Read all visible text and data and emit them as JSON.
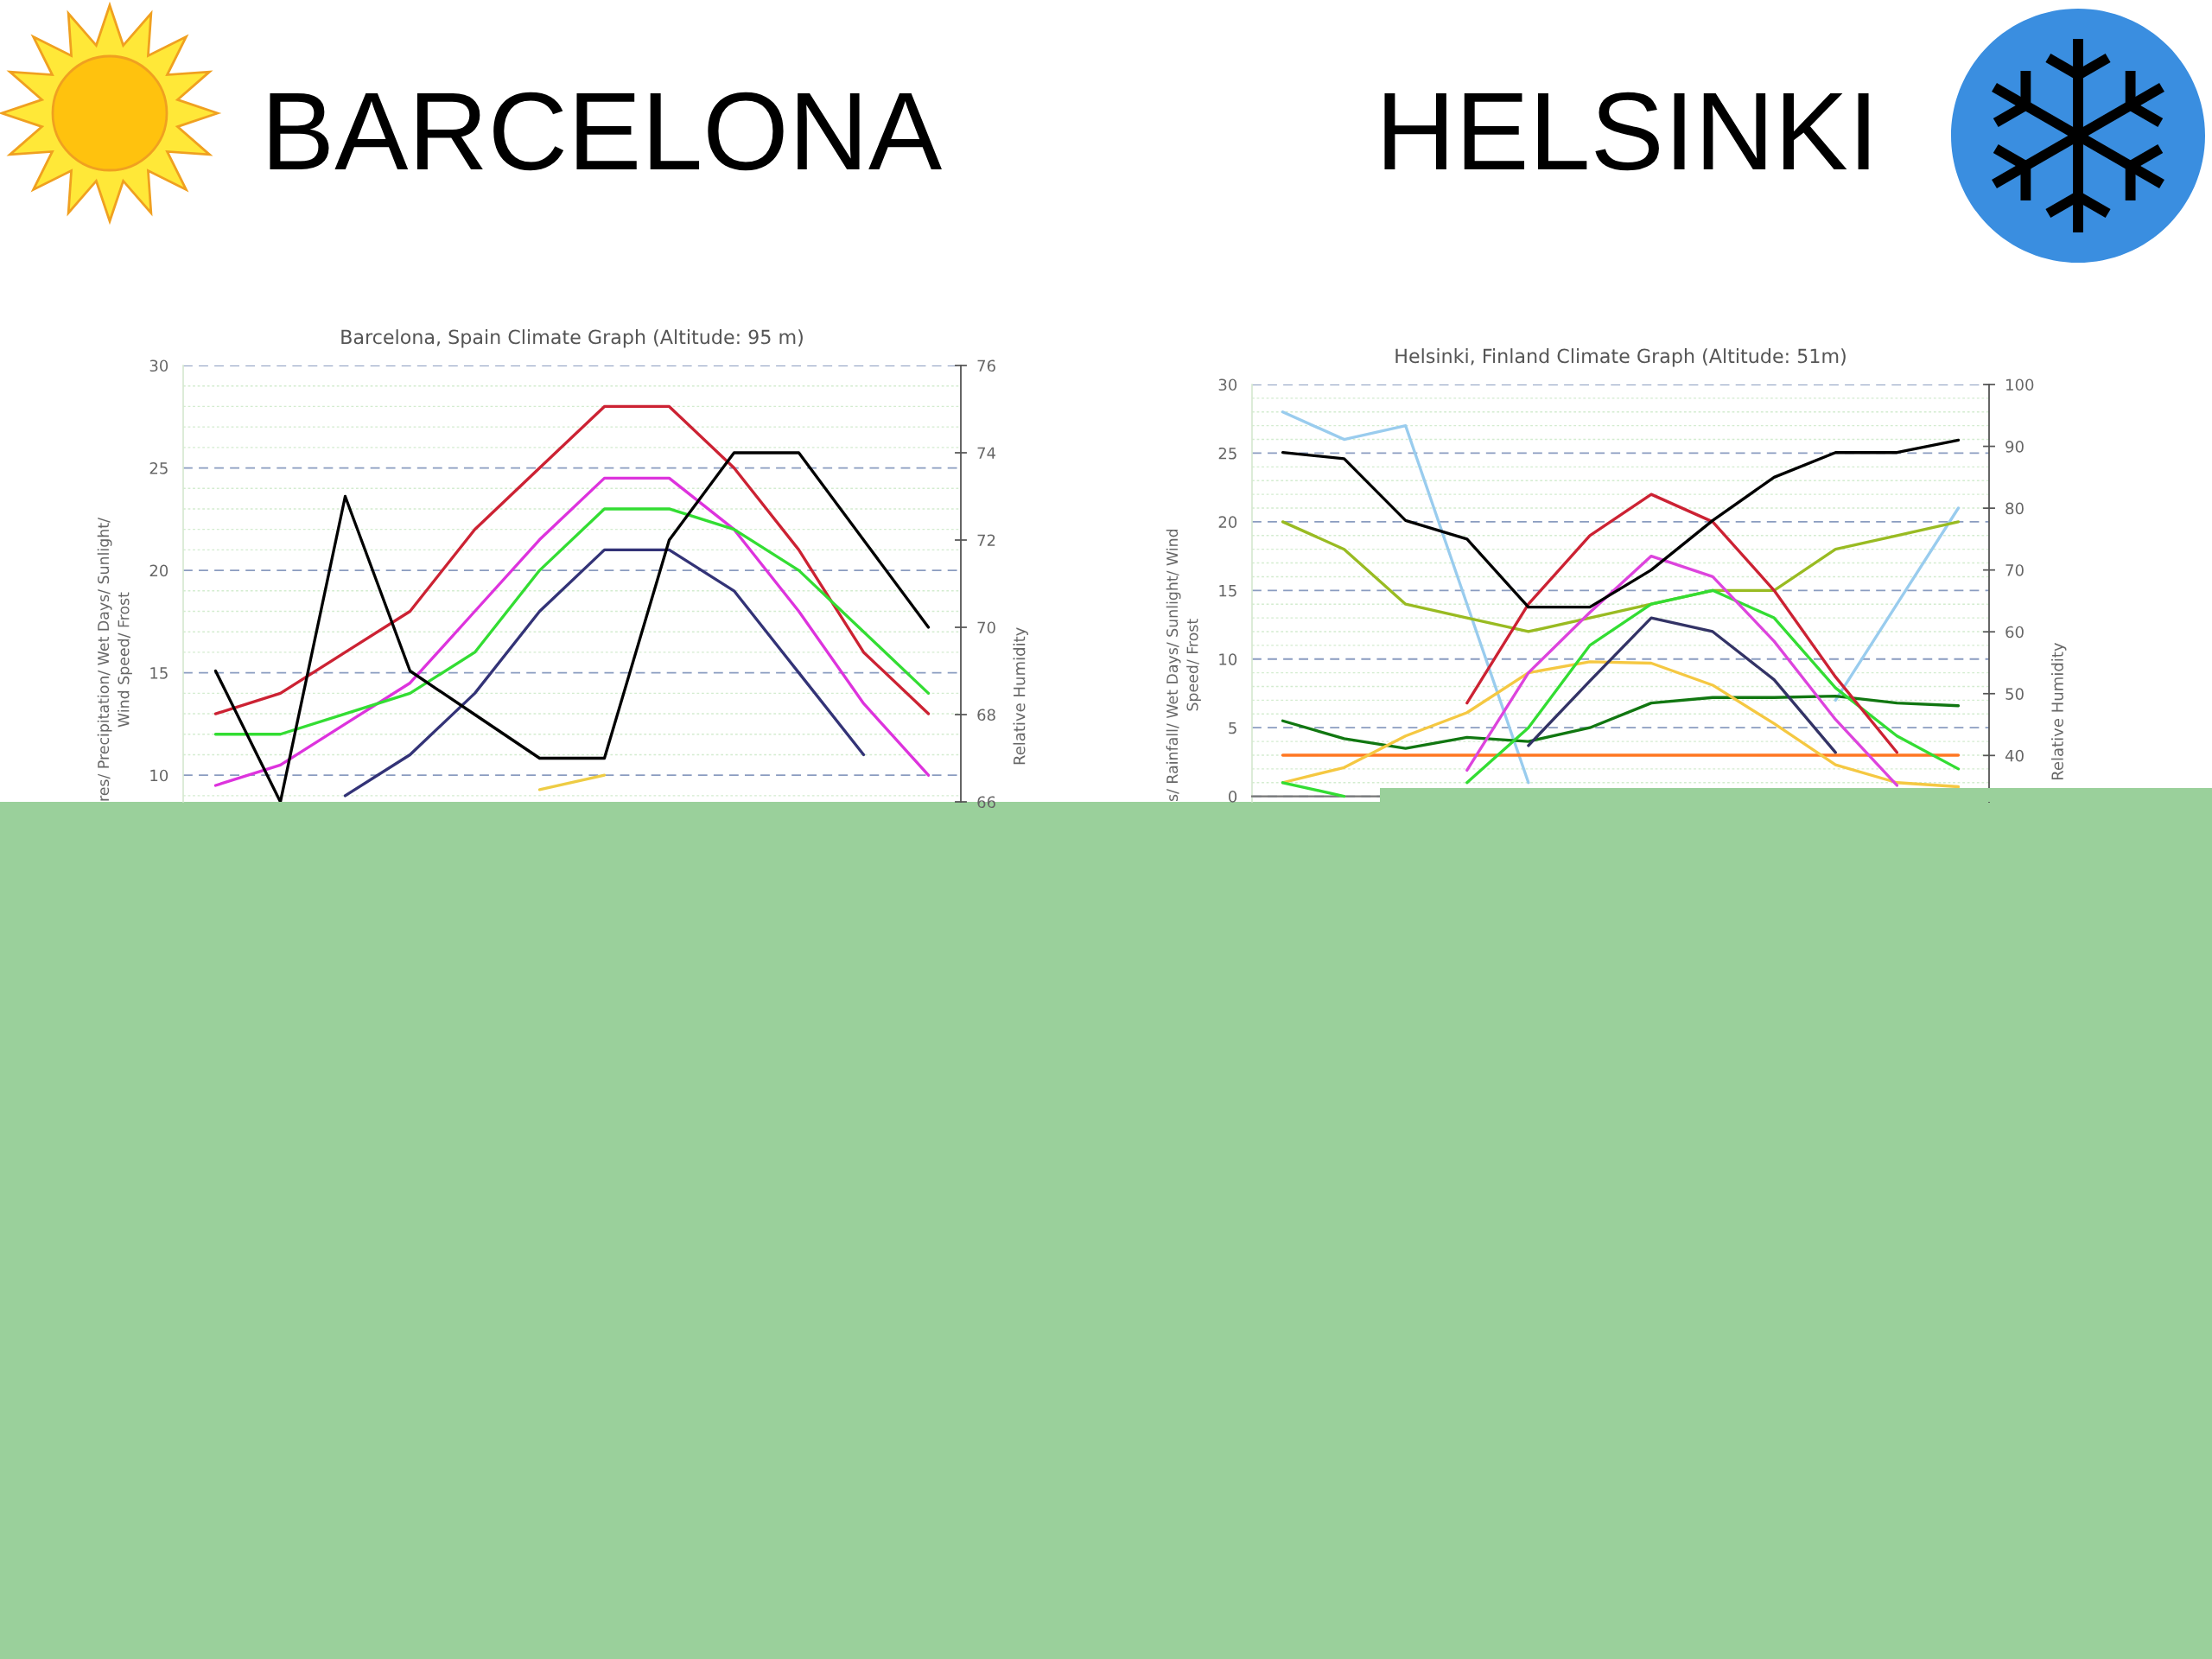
{
  "chart_data": [
    {
      "type": "line",
      "title": "BARCELONA",
      "subtitle": "Barcelona, Spain Climate Graph (Altitude: 95 m)",
      "ylabel": "res/ Precipitation/ Wet Days/ Sunlight/\nWind Speed/ Frost",
      "y2label": "Relative Humidity",
      "categories": [
        null,
        null,
        null,
        null,
        null,
        null,
        null,
        null,
        null,
        null,
        null,
        null
      ],
      "ylim": [
        8.7,
        30
      ],
      "yticks": [
        10,
        15,
        20,
        25,
        30
      ],
      "y2lim": [
        66,
        76
      ],
      "y2ticks": [
        66,
        68,
        70,
        72,
        74,
        76
      ],
      "grid": true,
      "series": [
        {
          "color": "#cc2233",
          "values": [
            13,
            14,
            16,
            18,
            22,
            25,
            28,
            28,
            25,
            21,
            16,
            13
          ]
        },
        {
          "color": "#dd33dd",
          "values": [
            9.5,
            10.5,
            12.5,
            14.5,
            18,
            21.5,
            24.5,
            24.5,
            22,
            18,
            13.5,
            10
          ]
        },
        {
          "color": "#33dd33",
          "values": [
            12,
            12,
            13,
            14,
            16,
            20,
            23,
            23,
            22,
            20,
            17,
            14
          ]
        },
        {
          "color": "#333377",
          "values": [
            null,
            null,
            9,
            11,
            14,
            18,
            21,
            21,
            19,
            15,
            11,
            null
          ]
        },
        {
          "color": "#eecc44",
          "values": [
            null,
            null,
            null,
            null,
            null,
            9.3,
            10,
            null,
            null,
            null,
            null,
            null
          ]
        },
        {
          "color": "#000000",
          "axis": "y2",
          "values": [
            69,
            66,
            73,
            69,
            68,
            67,
            67,
            72,
            74,
            74,
            72,
            70
          ]
        }
      ]
    },
    {
      "type": "line",
      "title": "HELSINKI",
      "subtitle": "Helsinki, Finland Climate Graph (Altitude: 51m)",
      "ylabel": "s/ Rainfall/ Wet Days/ Sunlight/ Wind\nSpeed/ Frost",
      "y2label": "Relative Humidity",
      "categories": [
        null,
        null,
        null,
        null,
        null,
        null,
        null,
        null,
        null,
        null,
        null,
        null
      ],
      "ylim": [
        -0.4,
        30
      ],
      "yticks": [
        0,
        5,
        10,
        15,
        20,
        25,
        30
      ],
      "y2lim": [
        32.5,
        100
      ],
      "y2ticks": [
        40,
        50,
        60,
        70,
        80,
        90,
        100
      ],
      "grid": true,
      "series": [
        {
          "color": "#99ccee",
          "values": [
            28,
            26,
            27,
            14,
            1,
            null,
            null,
            null,
            null,
            7,
            14,
            21
          ]
        },
        {
          "color": "#99bb22",
          "values": [
            20,
            18,
            14,
            13,
            12,
            13,
            14,
            15,
            15,
            18,
            19,
            20
          ]
        },
        {
          "color": "#117711",
          "values": [
            5.5,
            4.2,
            3.5,
            4.3,
            4,
            5,
            6.8,
            7.2,
            7.2,
            7.3,
            6.8,
            6.6
          ]
        },
        {
          "color": "#ff7722",
          "values": [
            3,
            3,
            3,
            3,
            3,
            3,
            3,
            3,
            3,
            3,
            3,
            3
          ]
        },
        {
          "color": "#f5c842",
          "values": [
            1,
            2.1,
            4.4,
            6.1,
            9,
            9.8,
            9.7,
            8.1,
            5.3,
            2.3,
            1,
            0.7
          ]
        },
        {
          "color": "#333366",
          "values": [
            null,
            null,
            null,
            null,
            3.7,
            8.4,
            13,
            12,
            8.5,
            3.2,
            null,
            null
          ]
        },
        {
          "color": "#33dd33",
          "values": [
            1,
            0,
            null,
            1,
            5,
            11,
            14,
            15,
            13,
            7.9,
            4.4,
            2
          ]
        },
        {
          "color": "#dd44dd",
          "values": [
            null,
            null,
            null,
            1.9,
            9,
            13.4,
            17.5,
            16,
            11.3,
            5.6,
            0.8,
            null
          ]
        },
        {
          "color": "#cc2233",
          "values": [
            null,
            null,
            null,
            6.8,
            14,
            19,
            22,
            20,
            15,
            8.7,
            3.2,
            null
          ]
        },
        {
          "color": "#000000",
          "axis": "y2",
          "values": [
            89,
            88,
            78,
            75,
            64,
            64,
            70,
            78,
            85,
            89,
            89,
            91
          ]
        }
      ]
    }
  ]
}
